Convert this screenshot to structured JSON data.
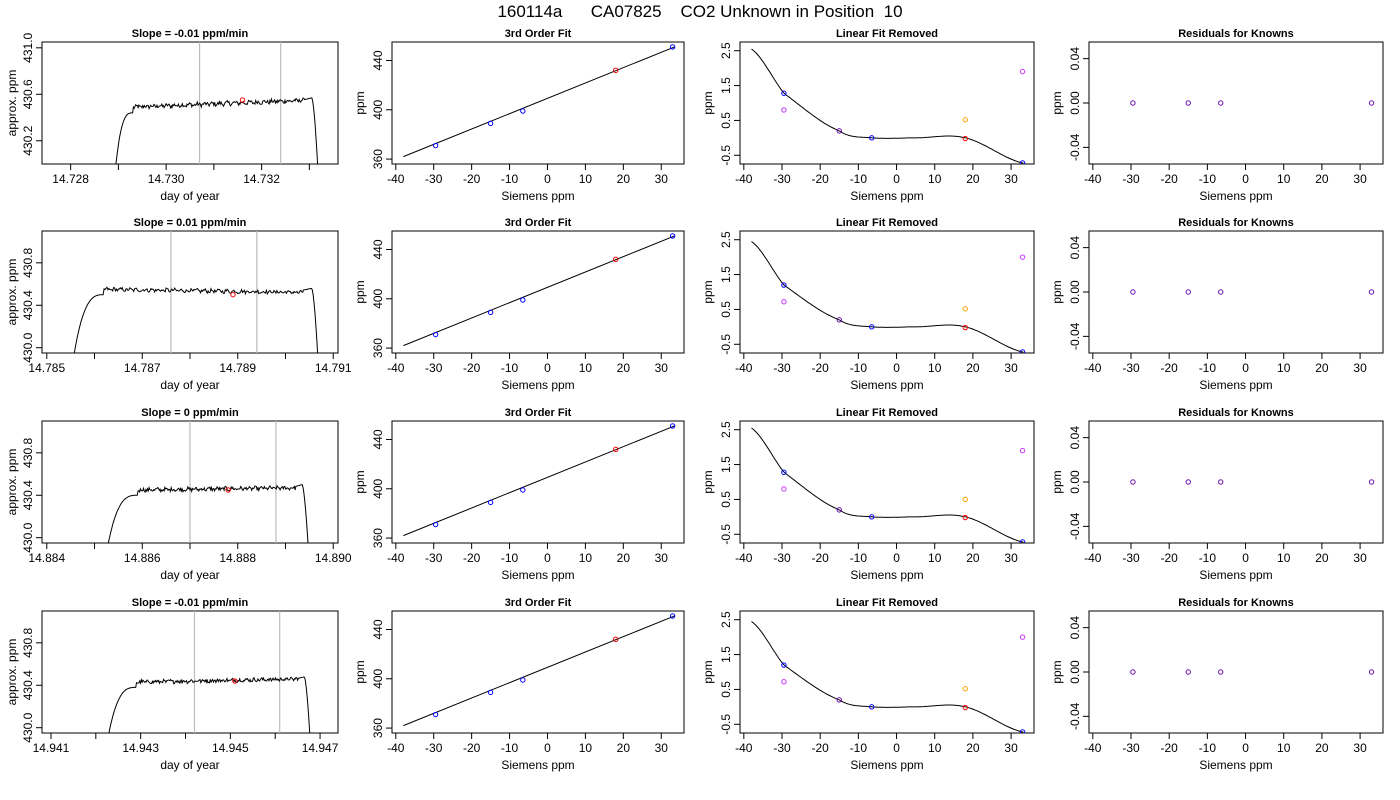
{
  "page_title": "160114a      CA07825    CO2 Unknown in Position  10",
  "colors": {
    "trace": "#000000",
    "marker_lines": "#bbbbbb",
    "fit_line": "#000000",
    "point_blue": "#0000ff",
    "point_red": "#ff0000",
    "point_magenta": "#cc33ff",
    "point_orange": "#ffa500",
    "point_purple": "#6a0dad"
  },
  "chart_data": [
    {
      "row": 1,
      "type": "line",
      "title": "Slope =  -0.01  ppm/min",
      "xlabel": "day of year",
      "ylabel": "approx. ppm",
      "xlim": [
        14.7274,
        14.7336
      ],
      "ylim": [
        430.0,
        431.05
      ],
      "xticks": [
        "14.728",
        "14.730",
        "14.732"
      ],
      "xtick_values": [
        14.728,
        14.73,
        14.732
      ],
      "yticks": [
        "430.2",
        "430.6",
        "431.0"
      ],
      "ytick_values": [
        430.2,
        430.6,
        431.0
      ],
      "minor_xtick_values": [
        14.729,
        14.731,
        14.733
      ],
      "vlines": [
        14.7307,
        14.7324
      ],
      "trace": {
        "start": 14.7289,
        "rise_end": 14.7293,
        "plateau_start_level": 430.49,
        "plateau_end_level": 430.55,
        "drop_start": 14.73305,
        "end": 14.7332,
        "peak_level": 430.57
      },
      "marker": {
        "x": 14.7316,
        "y": 430.55
      }
    },
    {
      "row": 1,
      "type": "scatter",
      "title": "3rd Order Fit",
      "xlabel": "Siemens ppm",
      "ylabel": "ppm",
      "xlim": [
        -41,
        36
      ],
      "ylim": [
        356,
        455
      ],
      "xticks": [
        "-40",
        "-30",
        "-20",
        "-10",
        "0",
        "10",
        "20",
        "30"
      ],
      "yticks": [
        "360",
        "400",
        "440"
      ],
      "fit_line": {
        "x": [
          -38,
          33.5
        ],
        "y": [
          362,
          451
        ]
      },
      "points": [
        {
          "x": -29.5,
          "y": 371,
          "color": "blue"
        },
        {
          "x": -15,
          "y": 389,
          "color": "blue"
        },
        {
          "x": -6.5,
          "y": 399,
          "color": "blue"
        },
        {
          "x": 18,
          "y": 432,
          "color": "red"
        },
        {
          "x": 33,
          "y": 451,
          "color": "blue"
        }
      ]
    },
    {
      "row": 1,
      "type": "scatter",
      "title": "Linear Fit Removed",
      "xlabel": "Siemens ppm",
      "ylabel": "ppm",
      "xlim": [
        -41,
        36
      ],
      "ylim": [
        -0.75,
        2.75
      ],
      "xticks": [
        "-40",
        "-30",
        "-20",
        "-10",
        "0",
        "10",
        "20",
        "30"
      ],
      "yticks": [
        "-0.5",
        "0.5",
        "1.5",
        "2.5"
      ],
      "fit_curve": {
        "x_range": [
          -38,
          33.2
        ],
        "knots": [
          [
            -38,
            2.55
          ],
          [
            -29.5,
            1.28
          ],
          [
            -15,
            0.2
          ],
          [
            -6.5,
            0.0
          ],
          [
            5,
            0.0
          ],
          [
            18,
            0.0
          ],
          [
            33,
            -0.72
          ]
        ]
      },
      "points": [
        {
          "x": -29.5,
          "y": 1.28,
          "color": "blue"
        },
        {
          "x": -29.5,
          "y": 0.8,
          "color": "magenta"
        },
        {
          "x": -15,
          "y": 0.2,
          "color": "purple"
        },
        {
          "x": -6.5,
          "y": 0.0,
          "color": "blue"
        },
        {
          "x": 18,
          "y": -0.02,
          "color": "red"
        },
        {
          "x": 18,
          "y": 0.52,
          "color": "orange"
        },
        {
          "x": 33,
          "y": 1.9,
          "color": "magenta"
        },
        {
          "x": 33,
          "y": -0.72,
          "color": "blue"
        }
      ]
    },
    {
      "row": 1,
      "type": "scatter",
      "title": "Residuals for Knowns",
      "xlabel": "Siemens ppm",
      "ylabel": "ppm",
      "xlim": [
        -41,
        36
      ],
      "ylim": [
        -0.055,
        0.055
      ],
      "xticks": [
        "-40",
        "-30",
        "-20",
        "-10",
        "0",
        "10",
        "20",
        "30"
      ],
      "yticks": [
        "-0.04",
        "0.00",
        "0.04"
      ],
      "points": [
        {
          "x": -29.5,
          "y": 0.0,
          "color": "purple"
        },
        {
          "x": -15,
          "y": 0.0,
          "color": "purple"
        },
        {
          "x": -6.5,
          "y": 0.0,
          "color": "purple"
        },
        {
          "x": 33,
          "y": 0.0,
          "color": "purple"
        }
      ]
    },
    {
      "row": 2,
      "type": "line",
      "title": "Slope =  0.01  ppm/min",
      "xlabel": "day of year",
      "ylabel": "approx. ppm",
      "xlim": [
        14.7849,
        14.7911
      ],
      "ylim": [
        429.95,
        431.1
      ],
      "xticks": [
        "14.785",
        "14.787",
        "14.789",
        "14.791"
      ],
      "xtick_values": [
        14.785,
        14.787,
        14.789,
        14.791
      ],
      "yticks": [
        "430.0",
        "430.4",
        "430.8"
      ],
      "ytick_values": [
        430.0,
        430.4,
        430.8
      ],
      "minor_xtick_values": [
        14.786,
        14.788,
        14.79
      ],
      "vlines": [
        14.7876,
        14.7894
      ],
      "trace": {
        "start": 14.7855,
        "rise_end": 14.7862,
        "plateau_start_level": 430.55,
        "plateau_end_level": 430.52,
        "drop_start": 14.79055,
        "end": 14.7907,
        "peak_level": 430.56
      },
      "marker": {
        "x": 14.7889,
        "y": 430.5
      }
    },
    {
      "row": 2,
      "type": "scatter",
      "title": "3rd Order Fit",
      "xlabel": "Siemens ppm",
      "ylabel": "ppm",
      "xlim": [
        -41,
        36
      ],
      "ylim": [
        356,
        455
      ],
      "xticks": [
        "-40",
        "-30",
        "-20",
        "-10",
        "0",
        "10",
        "20",
        "30"
      ],
      "yticks": [
        "360",
        "400",
        "440"
      ],
      "fit_line": {
        "x": [
          -38,
          33.5
        ],
        "y": [
          362,
          451
        ]
      },
      "points": [
        {
          "x": -29.5,
          "y": 371,
          "color": "blue"
        },
        {
          "x": -15,
          "y": 389,
          "color": "blue"
        },
        {
          "x": -6.5,
          "y": 399,
          "color": "blue"
        },
        {
          "x": 18,
          "y": 432,
          "color": "red"
        },
        {
          "x": 33,
          "y": 451,
          "color": "blue"
        }
      ]
    },
    {
      "row": 2,
      "type": "scatter",
      "title": "Linear Fit Removed",
      "xlabel": "Siemens ppm",
      "ylabel": "ppm",
      "xlim": [
        -41,
        36
      ],
      "ylim": [
        -0.75,
        2.75
      ],
      "xticks": [
        "-40",
        "-30",
        "-20",
        "-10",
        "0",
        "10",
        "20",
        "30"
      ],
      "yticks": [
        "-0.5",
        "0.5",
        "1.5",
        "2.5"
      ],
      "fit_curve": {
        "x_range": [
          -38,
          33.2
        ],
        "knots": [
          [
            -38,
            2.45
          ],
          [
            -29.5,
            1.2
          ],
          [
            -15,
            0.2
          ],
          [
            -6.5,
            0.0
          ],
          [
            5,
            0.0
          ],
          [
            18,
            0.0
          ],
          [
            33,
            -0.72
          ]
        ]
      },
      "points": [
        {
          "x": -29.5,
          "y": 1.2,
          "color": "blue"
        },
        {
          "x": -29.5,
          "y": 0.72,
          "color": "magenta"
        },
        {
          "x": -15,
          "y": 0.2,
          "color": "purple"
        },
        {
          "x": -6.5,
          "y": 0.0,
          "color": "blue"
        },
        {
          "x": 18,
          "y": -0.02,
          "color": "red"
        },
        {
          "x": 18,
          "y": 0.52,
          "color": "orange"
        },
        {
          "x": 33,
          "y": 2.0,
          "color": "magenta"
        },
        {
          "x": 33,
          "y": -0.72,
          "color": "blue"
        }
      ]
    },
    {
      "row": 2,
      "type": "scatter",
      "title": "Residuals for Knowns",
      "xlabel": "Siemens ppm",
      "ylabel": "ppm",
      "xlim": [
        -41,
        36
      ],
      "ylim": [
        -0.055,
        0.055
      ],
      "xticks": [
        "-40",
        "-30",
        "-20",
        "-10",
        "0",
        "10",
        "20",
        "30"
      ],
      "yticks": [
        "-0.04",
        "0.00",
        "0.04"
      ],
      "points": [
        {
          "x": -29.5,
          "y": 0.0,
          "color": "purple"
        },
        {
          "x": -15,
          "y": 0.0,
          "color": "purple"
        },
        {
          "x": -6.5,
          "y": 0.0,
          "color": "purple"
        },
        {
          "x": 33,
          "y": 0.0,
          "color": "purple"
        }
      ]
    },
    {
      "row": 3,
      "type": "line",
      "title": "Slope =  0  ppm/min",
      "xlabel": "day of year",
      "ylabel": "approx. ppm",
      "xlim": [
        14.8839,
        14.8901
      ],
      "ylim": [
        429.95,
        431.1
      ],
      "xticks": [
        "14.884",
        "14.886",
        "14.888",
        "14.890"
      ],
      "xtick_values": [
        14.884,
        14.886,
        14.888,
        14.89
      ],
      "yticks": [
        "430.0",
        "430.4",
        "430.8"
      ],
      "ytick_values": [
        430.0,
        430.4,
        430.8
      ],
      "minor_xtick_values": [
        14.885,
        14.887,
        14.889
      ],
      "vlines": [
        14.887,
        14.8888
      ],
      "trace": {
        "start": 14.8852,
        "rise_end": 14.8859,
        "plateau_start_level": 430.45,
        "plateau_end_level": 430.47,
        "drop_start": 14.88935,
        "end": 14.8895,
        "peak_level": 430.5
      },
      "marker": {
        "x": 14.8878,
        "y": 430.45
      }
    },
    {
      "row": 3,
      "type": "scatter",
      "title": "3rd Order Fit",
      "xlabel": "Siemens ppm",
      "ylabel": "ppm",
      "xlim": [
        -41,
        36
      ],
      "ylim": [
        356,
        455
      ],
      "xticks": [
        "-40",
        "-30",
        "-20",
        "-10",
        "0",
        "10",
        "20",
        "30"
      ],
      "yticks": [
        "360",
        "400",
        "440"
      ],
      "fit_line": {
        "x": [
          -38,
          33.5
        ],
        "y": [
          362,
          451
        ]
      },
      "points": [
        {
          "x": -29.5,
          "y": 371,
          "color": "blue"
        },
        {
          "x": -15,
          "y": 389,
          "color": "blue"
        },
        {
          "x": -6.5,
          "y": 399,
          "color": "blue"
        },
        {
          "x": 18,
          "y": 432,
          "color": "red"
        },
        {
          "x": 33,
          "y": 451,
          "color": "blue"
        }
      ]
    },
    {
      "row": 3,
      "type": "scatter",
      "title": "Linear Fit Removed",
      "xlabel": "Siemens ppm",
      "ylabel": "ppm",
      "xlim": [
        -41,
        36
      ],
      "ylim": [
        -0.75,
        2.75
      ],
      "xticks": [
        "-40",
        "-30",
        "-20",
        "-10",
        "0",
        "10",
        "20",
        "30"
      ],
      "yticks": [
        "-0.5",
        "0.5",
        "1.5",
        "2.5"
      ],
      "fit_curve": {
        "x_range": [
          -38,
          33.2
        ],
        "knots": [
          [
            -38,
            2.55
          ],
          [
            -29.5,
            1.28
          ],
          [
            -15,
            0.2
          ],
          [
            -6.5,
            0.0
          ],
          [
            5,
            0.0
          ],
          [
            18,
            0.0
          ],
          [
            33,
            -0.72
          ]
        ]
      },
      "points": [
        {
          "x": -29.5,
          "y": 1.28,
          "color": "blue"
        },
        {
          "x": -29.5,
          "y": 0.8,
          "color": "magenta"
        },
        {
          "x": -15,
          "y": 0.2,
          "color": "purple"
        },
        {
          "x": -6.5,
          "y": 0.0,
          "color": "blue"
        },
        {
          "x": 18,
          "y": -0.02,
          "color": "red"
        },
        {
          "x": 18,
          "y": 0.5,
          "color": "orange"
        },
        {
          "x": 33,
          "y": 1.9,
          "color": "magenta"
        },
        {
          "x": 33,
          "y": -0.72,
          "color": "blue"
        }
      ]
    },
    {
      "row": 3,
      "type": "scatter",
      "title": "Residuals for Knowns",
      "xlabel": "Siemens ppm",
      "ylabel": "ppm",
      "xlim": [
        -41,
        36
      ],
      "ylim": [
        -0.055,
        0.055
      ],
      "xticks": [
        "-40",
        "-30",
        "-20",
        "-10",
        "0",
        "10",
        "20",
        "30"
      ],
      "yticks": [
        "-0.04",
        "0.00",
        "0.04"
      ],
      "points": [
        {
          "x": -29.5,
          "y": 0.0,
          "color": "purple"
        },
        {
          "x": -15,
          "y": 0.0,
          "color": "purple"
        },
        {
          "x": -6.5,
          "y": 0.0,
          "color": "purple"
        },
        {
          "x": 33,
          "y": 0.0,
          "color": "purple"
        }
      ]
    },
    {
      "row": 4,
      "type": "line",
      "title": "Slope =  -0.01  ppm/min",
      "xlabel": "day of year",
      "ylabel": "approx. ppm",
      "xlim": [
        14.9408,
        14.9474
      ],
      "ylim": [
        429.95,
        431.1
      ],
      "xticks": [
        "14.941",
        "14.943",
        "14.945",
        "14.947"
      ],
      "xtick_values": [
        14.941,
        14.943,
        14.945,
        14.947
      ],
      "yticks": [
        "430.0",
        "430.4",
        "430.8"
      ],
      "ytick_values": [
        430.0,
        430.4,
        430.8
      ],
      "minor_xtick_values": [
        14.942,
        14.944,
        14.946
      ],
      "vlines": [
        14.9442,
        14.9461
      ],
      "trace": {
        "start": 14.9422,
        "rise_end": 14.9429,
        "plateau_start_level": 430.43,
        "plateau_end_level": 430.46,
        "drop_start": 14.94665,
        "end": 14.9468,
        "peak_level": 430.48
      },
      "marker": {
        "x": 14.9451,
        "y": 430.44
      }
    },
    {
      "row": 4,
      "type": "scatter",
      "title": "3rd Order Fit",
      "xlabel": "Siemens ppm",
      "ylabel": "ppm",
      "xlim": [
        -41,
        36
      ],
      "ylim": [
        356,
        455
      ],
      "xticks": [
        "-40",
        "-30",
        "-20",
        "-10",
        "0",
        "10",
        "20",
        "30"
      ],
      "yticks": [
        "360",
        "400",
        "440"
      ],
      "fit_line": {
        "x": [
          -38,
          33.5
        ],
        "y": [
          362,
          451
        ]
      },
      "points": [
        {
          "x": -29.5,
          "y": 371,
          "color": "blue"
        },
        {
          "x": -15,
          "y": 389,
          "color": "blue"
        },
        {
          "x": -6.5,
          "y": 399,
          "color": "blue"
        },
        {
          "x": 18,
          "y": 432,
          "color": "red"
        },
        {
          "x": 33,
          "y": 451,
          "color": "blue"
        }
      ]
    },
    {
      "row": 4,
      "type": "scatter",
      "title": "Linear Fit Removed",
      "xlabel": "Siemens ppm",
      "ylabel": "ppm",
      "xlim": [
        -41,
        36
      ],
      "ylim": [
        -0.75,
        2.75
      ],
      "xticks": [
        "-40",
        "-30",
        "-20",
        "-10",
        "0",
        "10",
        "20",
        "30"
      ],
      "yticks": [
        "-0.5",
        "0.5",
        "1.5",
        "2.5"
      ],
      "fit_curve": {
        "x_range": [
          -38,
          33.2
        ],
        "knots": [
          [
            -38,
            2.45
          ],
          [
            -29.5,
            1.2
          ],
          [
            -15,
            0.2
          ],
          [
            -6.5,
            0.0
          ],
          [
            5,
            0.0
          ],
          [
            18,
            0.0
          ],
          [
            33,
            -0.72
          ]
        ]
      },
      "points": [
        {
          "x": -29.5,
          "y": 1.2,
          "color": "blue"
        },
        {
          "x": -29.5,
          "y": 0.72,
          "color": "magenta"
        },
        {
          "x": -15,
          "y": 0.2,
          "color": "purple"
        },
        {
          "x": -6.5,
          "y": 0.0,
          "color": "blue"
        },
        {
          "x": 18,
          "y": -0.02,
          "color": "red"
        },
        {
          "x": 18,
          "y": 0.52,
          "color": "orange"
        },
        {
          "x": 33,
          "y": 2.0,
          "color": "magenta"
        },
        {
          "x": 33,
          "y": -0.72,
          "color": "blue"
        }
      ]
    },
    {
      "row": 4,
      "type": "scatter",
      "title": "Residuals for Knowns",
      "xlabel": "Siemens ppm",
      "ylabel": "ppm",
      "xlim": [
        -41,
        36
      ],
      "ylim": [
        -0.055,
        0.055
      ],
      "xticks": [
        "-40",
        "-30",
        "-20",
        "-10",
        "0",
        "10",
        "20",
        "30"
      ],
      "yticks": [
        "-0.04",
        "0.00",
        "0.04"
      ],
      "points": [
        {
          "x": -29.5,
          "y": 0.0,
          "color": "purple"
        },
        {
          "x": -15,
          "y": 0.0,
          "color": "purple"
        },
        {
          "x": -6.5,
          "y": 0.0,
          "color": "purple"
        },
        {
          "x": 33,
          "y": 0.0,
          "color": "purple"
        }
      ]
    }
  ]
}
